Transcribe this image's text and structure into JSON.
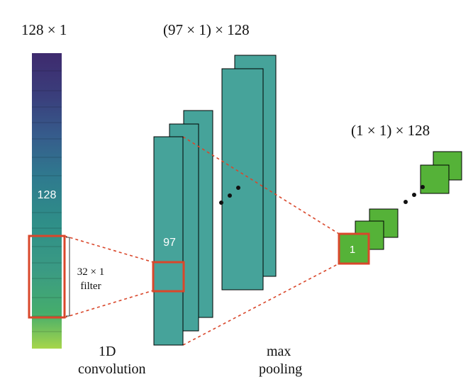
{
  "labels": {
    "input_shape": "128 × 1",
    "conv_shape": "(97 × 1) × 128",
    "pool_shape": "(1 × 1) × 128",
    "input_length": "128",
    "conv_length": "97",
    "pool_length": "1",
    "filter_line1": "32 × 1",
    "filter_line2": "filter",
    "conv_line1": "1D",
    "conv_line2": "convolution",
    "pool_line1": "max",
    "pool_line2": "pooling"
  },
  "colors": {
    "teal": "#46a39a",
    "green": "#55b238",
    "highlight": "#d9472b",
    "input_gradient": [
      "#3e2a6e",
      "#3c4f8a",
      "#2f7a8e",
      "#2f8f88",
      "#3b9b83",
      "#45ad6c",
      "#6fc25a",
      "#a7d64a"
    ]
  }
}
